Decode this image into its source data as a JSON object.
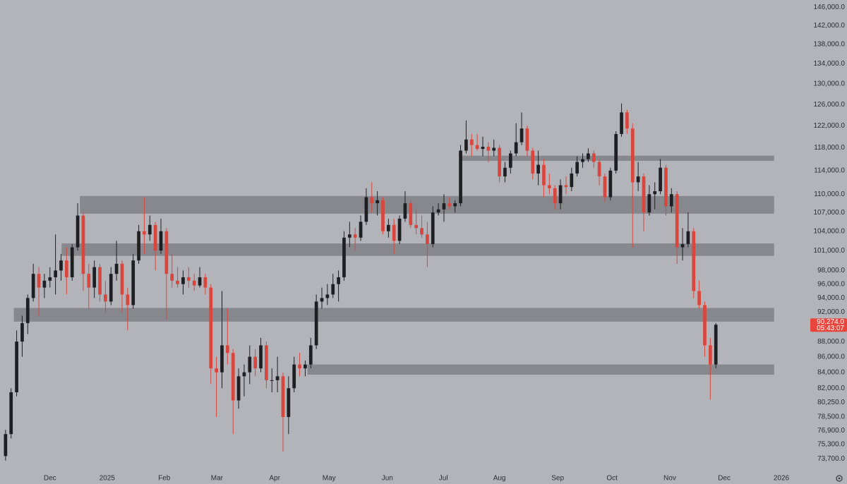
{
  "chart_data": {
    "type": "candlestick",
    "log_scale": true,
    "up_color": "#1e1f23",
    "down_color": "#d8463d",
    "zone_color": "#7f8086",
    "background": "#b3b4ba",
    "ylim": [
      72000,
      147600
    ],
    "xlim": [
      -1,
      144
    ],
    "yticks": [
      {
        "value": 146000,
        "label": "146,000.0"
      },
      {
        "value": 142000,
        "label": "142,000.0"
      },
      {
        "value": 138000,
        "label": "138,000.0"
      },
      {
        "value": 134000,
        "label": "134,000.0"
      },
      {
        "value": 130000,
        "label": "130,000.0"
      },
      {
        "value": 126000,
        "label": "126,000.0"
      },
      {
        "value": 122000,
        "label": "122,000.0"
      },
      {
        "value": 118000,
        "label": "118,000.0"
      },
      {
        "value": 114000,
        "label": "114,000.0"
      },
      {
        "value": 110000,
        "label": "110,000.0"
      },
      {
        "value": 107000,
        "label": "107,000.0"
      },
      {
        "value": 104000,
        "label": "104,000.0"
      },
      {
        "value": 101000,
        "label": "101,000.0"
      },
      {
        "value": 98000,
        "label": "98,000.0"
      },
      {
        "value": 96000,
        "label": "96,000.0"
      },
      {
        "value": 94000,
        "label": "94,000.0"
      },
      {
        "value": 92000,
        "label": "92,000.0"
      },
      {
        "value": 88000,
        "label": "88,000.0"
      },
      {
        "value": 86000,
        "label": "86,000.0"
      },
      {
        "value": 84000,
        "label": "84,000.0"
      },
      {
        "value": 82000,
        "label": "82,000.0"
      },
      {
        "value": 80250,
        "label": "80,250.0"
      },
      {
        "value": 78500,
        "label": "78,500.0"
      },
      {
        "value": 76900,
        "label": "76,900.0"
      },
      {
        "value": 75300,
        "label": "75,300.0"
      },
      {
        "value": 73700,
        "label": "73,700.0"
      }
    ],
    "xticks": [
      {
        "value": 8.0,
        "label": "Dec"
      },
      {
        "value": 18.3,
        "label": "2025"
      },
      {
        "value": 28.6,
        "label": "Feb"
      },
      {
        "value": 38.1,
        "label": "Mar"
      },
      {
        "value": 48.5,
        "label": "Apr"
      },
      {
        "value": 58.3,
        "label": "May"
      },
      {
        "value": 68.8,
        "label": "Jun"
      },
      {
        "value": 78.9,
        "label": "Jul"
      },
      {
        "value": 89.0,
        "label": "Aug"
      },
      {
        "value": 99.5,
        "label": "Sep"
      },
      {
        "value": 109.3,
        "label": "Oct"
      },
      {
        "value": 119.7,
        "label": "Nov"
      },
      {
        "value": 129.5,
        "label": "Dec"
      },
      {
        "value": 139.8,
        "label": "2026"
      }
    ],
    "last_price": {
      "value": 90274,
      "label": "90,274.0"
    },
    "countdown": "05:43:07",
    "zones": [
      {
        "start": 81.9,
        "end": 138.5,
        "low": 115700,
        "high": 116600
      },
      {
        "start": 13.4,
        "end": 138.5,
        "low": 106800,
        "high": 109700
      },
      {
        "start": 10.1,
        "end": 138.5,
        "low": 100200,
        "high": 102100
      },
      {
        "start": 1.5,
        "end": 138.5,
        "low": 90700,
        "high": 92600
      },
      {
        "start": 54.4,
        "end": 138.5,
        "low": 83700,
        "high": 85000
      }
    ],
    "open": [
      74000,
      76500,
      81500,
      88000,
      90500,
      94000,
      97500,
      95500,
      96500,
      97000,
      98000,
      99500,
      97000,
      101500,
      106500,
      97500,
      95500,
      98500,
      94500,
      93500,
      97500,
      99000,
      94500,
      93000,
      99500,
      104000,
      103500,
      105000,
      101000,
      104000,
      97500,
      96500,
      96000,
      97000,
      96500,
      95800,
      97000,
      95500,
      84500,
      84000,
      87500,
      86500,
      80500,
      83500,
      84000,
      86000,
      84500,
      87500,
      83000,
      83000,
      83500,
      78500,
      82000,
      85000,
      84500,
      85000,
      87500,
      93500,
      94000,
      94500,
      96000,
      97000,
      103000,
      103500,
      103000,
      105500,
      109500,
      108500,
      109000,
      104000,
      105000,
      102500,
      106000,
      108500,
      105000,
      104500,
      103500,
      102000,
      107000,
      107500,
      108500,
      108000,
      108500,
      117500,
      119500,
      118500,
      117800,
      118200,
      117500,
      118000,
      113000,
      114500,
      117000,
      119000,
      121500,
      117500,
      113500,
      115000,
      111500,
      111000,
      108500,
      111500,
      111200,
      113500,
      115500,
      116000,
      117000,
      115500,
      113000,
      109500,
      114000,
      120500,
      124500,
      121500,
      112000,
      113000,
      107000,
      110000,
      110500,
      114500,
      108000,
      110000,
      101500,
      102000,
      104000,
      95000,
      93000,
      87500,
      85000
    ],
    "high": [
      77000,
      82000,
      89500,
      91500,
      94500,
      99000,
      98500,
      97500,
      98500,
      103500,
      100500,
      101500,
      102000,
      108500,
      107000,
      99000,
      99500,
      99000,
      96500,
      98500,
      102500,
      99500,
      95500,
      100500,
      105000,
      109500,
      106500,
      105500,
      106000,
      104500,
      100500,
      98500,
      98000,
      98500,
      97500,
      98500,
      97500,
      96000,
      86000,
      95000,
      92500,
      87000,
      84500,
      85000,
      87500,
      87000,
      88500,
      88000,
      84500,
      86000,
      84000,
      83500,
      86000,
      86500,
      85500,
      88500,
      94500,
      95500,
      96000,
      97500,
      98000,
      104000,
      105500,
      104500,
      106500,
      111000,
      112000,
      110500,
      109500,
      106000,
      106000,
      106500,
      110500,
      109000,
      107500,
      106500,
      105500,
      108000,
      108500,
      110000,
      109500,
      109000,
      118500,
      123000,
      120500,
      120500,
      120000,
      119000,
      119500,
      118500,
      115500,
      117500,
      122500,
      124500,
      122000,
      118000,
      117500,
      116000,
      113500,
      111500,
      112500,
      113000,
      114500,
      116500,
      117000,
      117900,
      117500,
      116000,
      113500,
      114500,
      121000,
      126200,
      125000,
      122500,
      115500,
      113500,
      111500,
      112000,
      116000,
      115000,
      111000,
      110500,
      104500,
      107000,
      104500,
      96500,
      93500,
      88500,
      90500
    ],
    "low": [
      73500,
      76000,
      81000,
      86000,
      89000,
      93500,
      91500,
      94000,
      95500,
      94500,
      96500,
      94500,
      96500,
      101000,
      95000,
      92500,
      94000,
      93500,
      92000,
      93000,
      96500,
      92000,
      89500,
      92500,
      99000,
      100500,
      102500,
      98000,
      100500,
      91000,
      95500,
      95500,
      94500,
      95500,
      95000,
      95500,
      94500,
      82500,
      78500,
      82000,
      85000,
      76500,
      79500,
      81000,
      82500,
      83500,
      84000,
      82000,
      81500,
      81500,
      74500,
      76500,
      81500,
      83500,
      83500,
      84500,
      87000,
      92500,
      93000,
      94000,
      93500,
      96500,
      101500,
      101000,
      102500,
      105000,
      107000,
      106500,
      103500,
      103000,
      100500,
      102000,
      105500,
      104500,
      103500,
      103000,
      98500,
      101500,
      106500,
      105500,
      107500,
      107000,
      108000,
      117000,
      116500,
      117500,
      116500,
      115500,
      116500,
      112000,
      112000,
      113500,
      116500,
      118500,
      116500,
      112500,
      111500,
      109500,
      110000,
      107500,
      107500,
      110000,
      110500,
      113000,
      114500,
      115500,
      114500,
      111500,
      108700,
      109000,
      113500,
      120000,
      120500,
      101500,
      110500,
      104000,
      106500,
      107500,
      110000,
      106500,
      107000,
      99000,
      99500,
      101500,
      94000,
      92500,
      86000,
      80600,
      84500
    ],
    "close": [
      76500,
      81500,
      88000,
      90500,
      94000,
      97500,
      95500,
      96500,
      97000,
      98000,
      99500,
      97000,
      101500,
      106500,
      97500,
      95500,
      98500,
      94500,
      93500,
      97500,
      99000,
      94500,
      93000,
      99500,
      104000,
      103500,
      105000,
      101000,
      104000,
      97500,
      96500,
      96000,
      97000,
      96500,
      95800,
      97000,
      95500,
      84500,
      84000,
      87500,
      86500,
      80500,
      83500,
      84000,
      86000,
      84500,
      87500,
      83000,
      83000,
      83500,
      78500,
      82000,
      85000,
      84500,
      85000,
      87500,
      93500,
      94000,
      94500,
      96000,
      97000,
      103000,
      103500,
      103000,
      105500,
      109500,
      108500,
      109000,
      104000,
      105000,
      102500,
      106000,
      108500,
      105000,
      104500,
      103500,
      102000,
      107000,
      107500,
      108500,
      108000,
      108500,
      117500,
      119500,
      118500,
      117800,
      118200,
      117500,
      118000,
      113000,
      114500,
      117000,
      119000,
      121500,
      117500,
      113500,
      115000,
      111500,
      111000,
      108500,
      111500,
      111200,
      113500,
      115500,
      116000,
      117000,
      115500,
      113000,
      109500,
      114000,
      120500,
      124500,
      121500,
      112000,
      113000,
      107000,
      110000,
      110500,
      114500,
      108000,
      110000,
      101500,
      102000,
      104000,
      95000,
      93000,
      87500,
      85000,
      90274
    ]
  }
}
